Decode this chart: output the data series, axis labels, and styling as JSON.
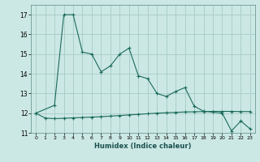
{
  "xlabel": "Humidex (Indice chaleur)",
  "bg_color": "#cce8e4",
  "grid_color": "#aacfca",
  "line_color": "#1a6b5a",
  "xlim": [
    -0.5,
    23.5
  ],
  "ylim": [
    11,
    17.5
  ],
  "yticks": [
    11,
    12,
    13,
    14,
    15,
    16,
    17
  ],
  "xticks": [
    0,
    1,
    2,
    3,
    4,
    5,
    6,
    7,
    8,
    9,
    10,
    11,
    12,
    13,
    14,
    15,
    16,
    17,
    18,
    19,
    20,
    21,
    22,
    23
  ],
  "series1_x": [
    0,
    2,
    3,
    4,
    5,
    6,
    7,
    8,
    9,
    10,
    11,
    12,
    13,
    14,
    15,
    16,
    17,
    18,
    19,
    20,
    21,
    22,
    23
  ],
  "series1_y": [
    12.0,
    12.4,
    17.0,
    17.0,
    15.1,
    15.0,
    14.1,
    14.4,
    15.0,
    15.3,
    13.9,
    13.75,
    13.0,
    12.85,
    13.1,
    13.3,
    12.35,
    12.1,
    12.05,
    12.0,
    11.1,
    11.6,
    11.2
  ],
  "series2_x": [
    0,
    1,
    2,
    3,
    4,
    5,
    6,
    7,
    8,
    9,
    10,
    11,
    12,
    13,
    14,
    15,
    16,
    17,
    18,
    19,
    20,
    21,
    22,
    23
  ],
  "series2_y": [
    12.0,
    11.75,
    11.72,
    11.74,
    11.76,
    11.78,
    11.8,
    11.82,
    11.85,
    11.88,
    11.91,
    11.94,
    11.97,
    12.0,
    12.02,
    12.04,
    12.06,
    12.07,
    12.08,
    12.09,
    12.09,
    12.09,
    12.08,
    12.08
  ]
}
